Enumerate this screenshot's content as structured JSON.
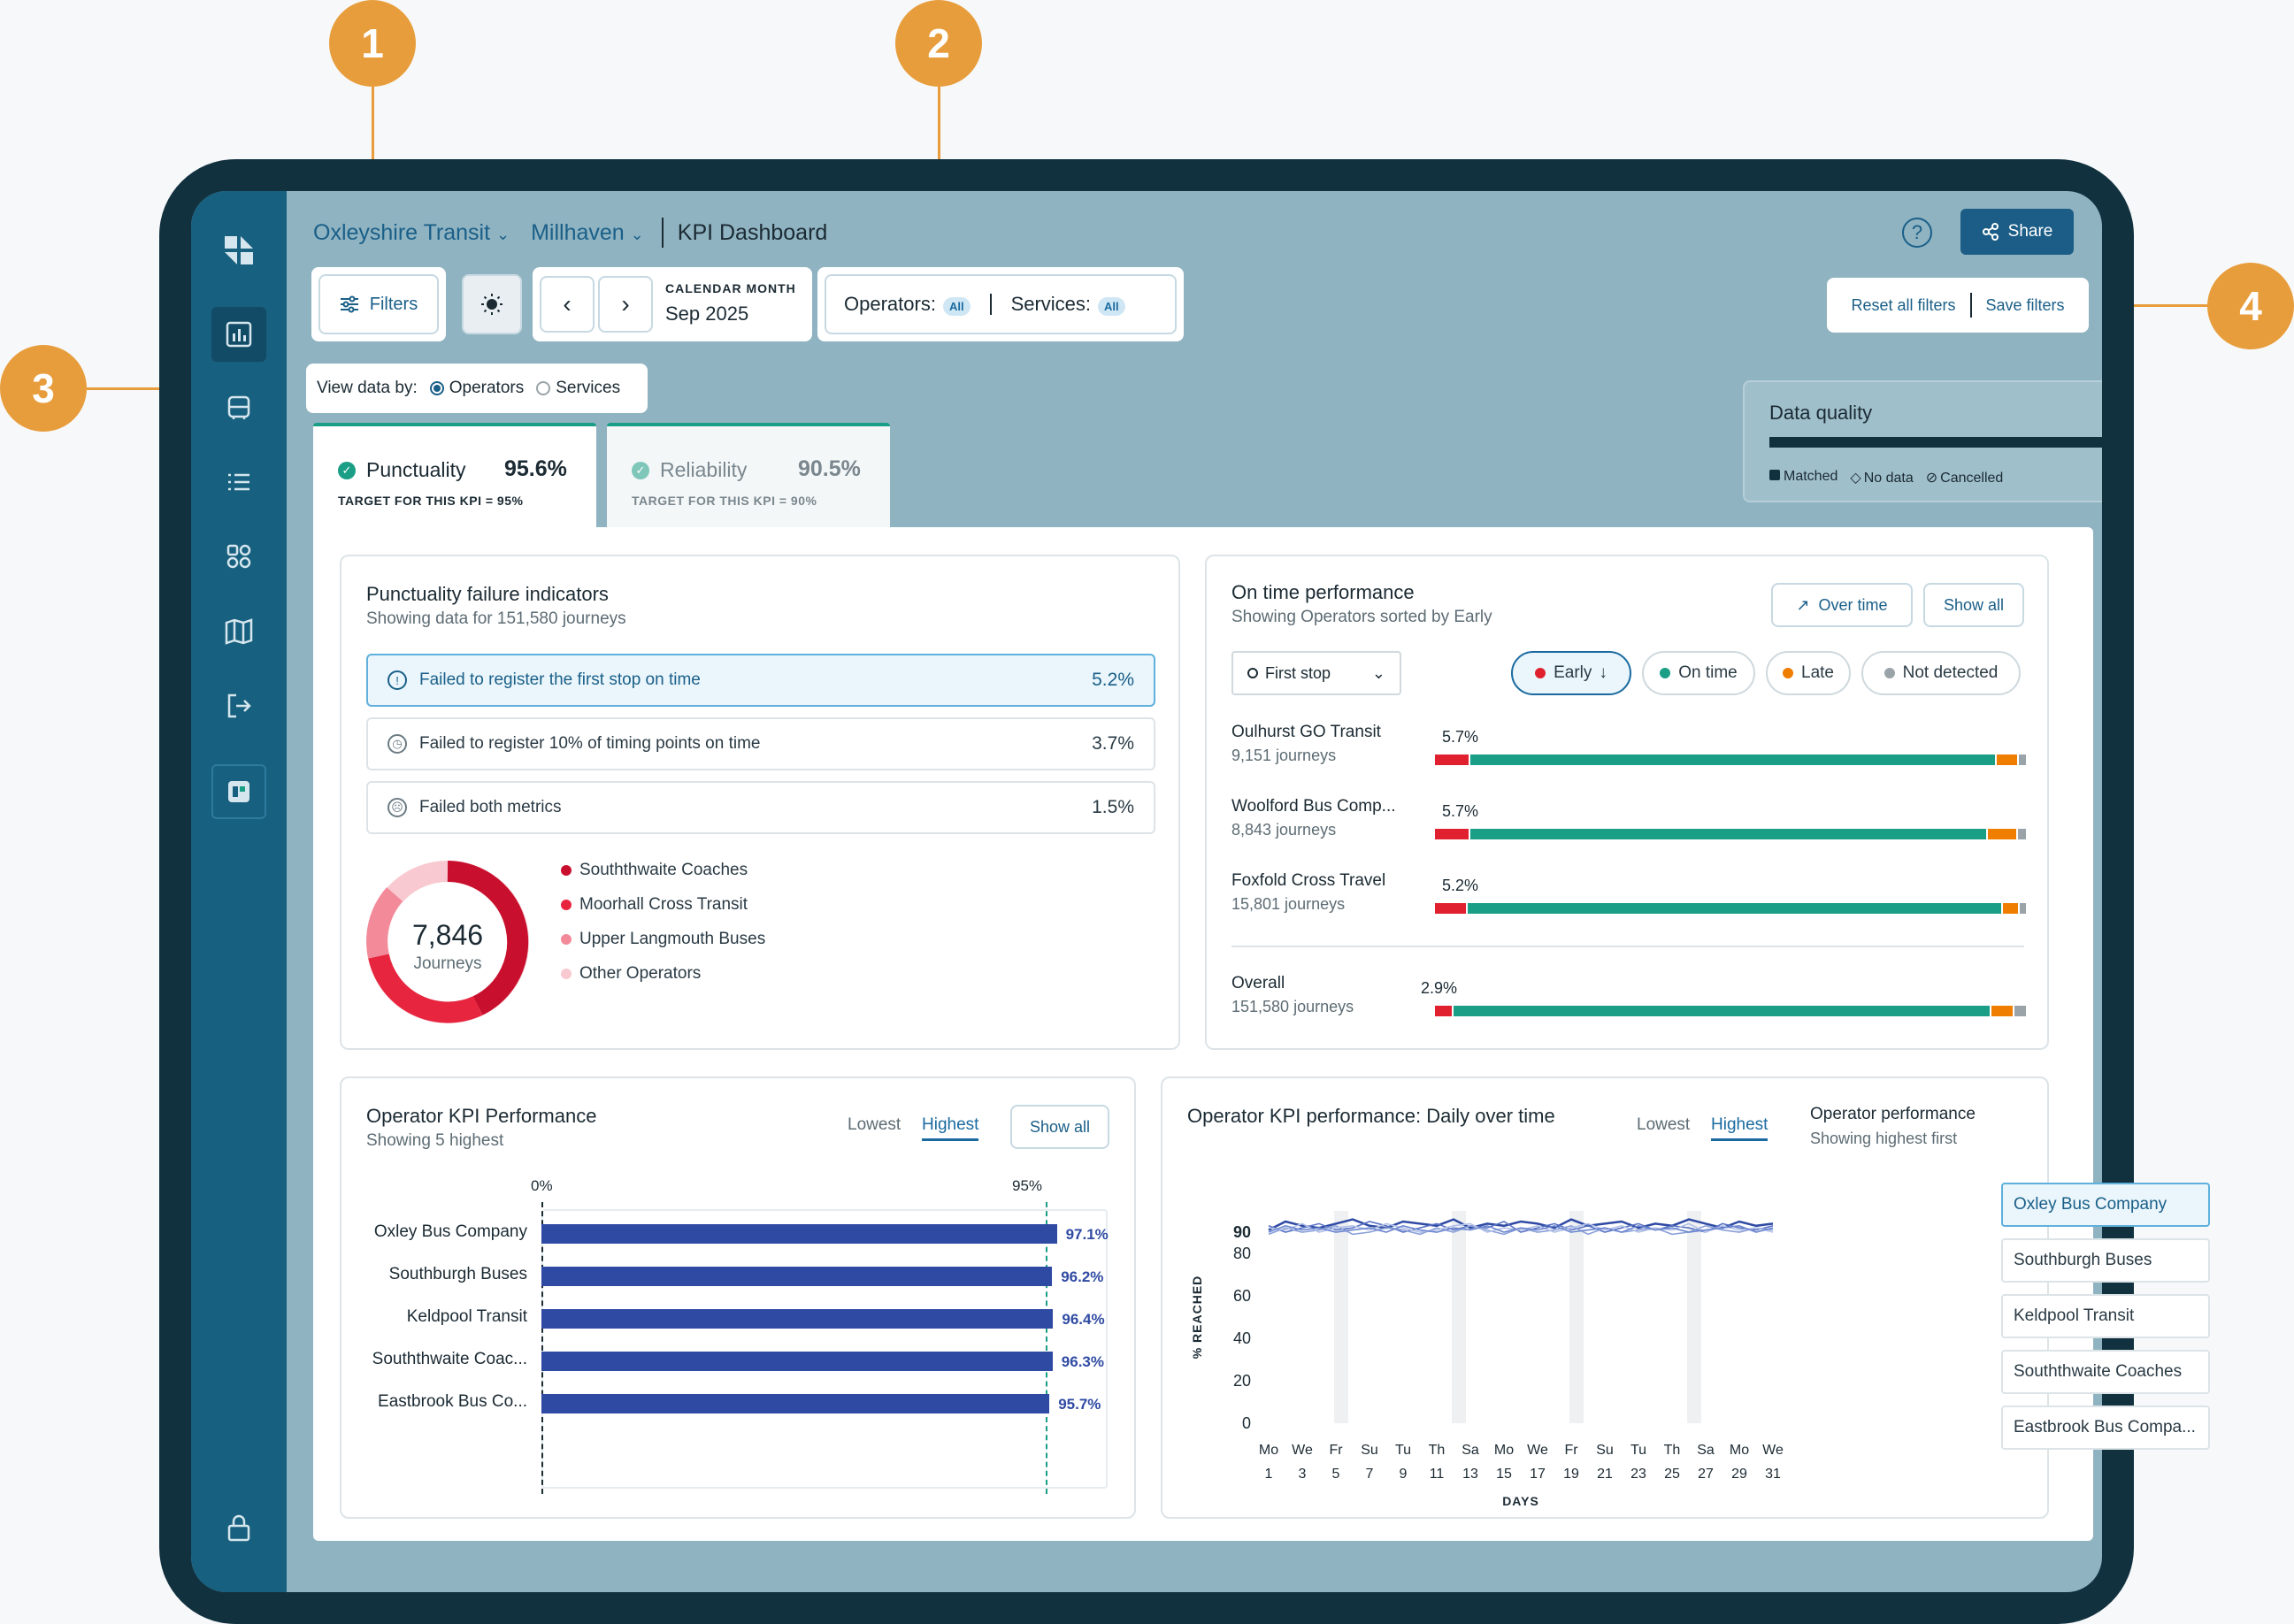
{
  "callouts": [
    "1",
    "2",
    "3",
    "4"
  ],
  "header": {
    "org": "Oxleyshire Transit",
    "area": "Millhaven",
    "page": "KPI Dashboard",
    "share": "Share"
  },
  "toolbar": {
    "filters": "Filters",
    "period_label": "CALENDAR MONTH",
    "period_value": "Sep 2025",
    "operators_label": "Operators:",
    "operators_value": "All",
    "services_label": "Services:",
    "services_value": "All",
    "reset": "Reset all filters",
    "save": "Save filters"
  },
  "view_by": {
    "label": "View data by:",
    "options": [
      "Operators",
      "Services"
    ],
    "selected": "Operators"
  },
  "kpi_tabs": [
    {
      "name": "Punctuality",
      "value": "95.6%",
      "target": "TARGET FOR THIS KPI = 95%"
    },
    {
      "name": "Reliability",
      "value": "90.5%",
      "target": "TARGET FOR THIS KPI = 90%"
    }
  ],
  "data_quality": {
    "title": "Data quality",
    "matched_fraction": 0.92,
    "legend": [
      "Matched",
      "No data",
      "Cancelled"
    ]
  },
  "failure": {
    "title": "Punctuality failure indicators",
    "subtitle": "Showing data for 151,580 journeys",
    "items": [
      {
        "label": "Failed to register the first stop on time",
        "value": "5.2%",
        "icon": "alert-icon"
      },
      {
        "label": "Failed to register 10% of timing points on time",
        "value": "3.7%",
        "icon": "clock-icon"
      },
      {
        "label": "Failed both metrics",
        "value": "1.5%",
        "icon": "sad-face-icon"
      }
    ],
    "donut_value": "7,846",
    "donut_label": "Journeys",
    "legend": [
      {
        "name": "Souththwaite Coaches",
        "color": "#c8102e"
      },
      {
        "name": "Moorhall Cross Transit",
        "color": "#e8253f"
      },
      {
        "name": "Upper Langmouth Buses",
        "color": "#f28a99"
      },
      {
        "name": "Other Operators",
        "color": "#f8c9d0"
      }
    ]
  },
  "ontime": {
    "title": "On time performance",
    "subtitle": "Showing Operators sorted by Early",
    "over_time": "Over time",
    "show_all": "Show all",
    "stop_select": "First stop",
    "chips": [
      {
        "label": "Early",
        "color": "#e0202e"
      },
      {
        "label": "On time",
        "color": "#1a9e86"
      },
      {
        "label": "Late",
        "color": "#ef7d00"
      },
      {
        "label": "Not detected",
        "color": "#9aa3a8"
      }
    ],
    "rows": [
      {
        "name": "Oulhurst GO Transit",
        "journeys": "9,151 journeys",
        "early_label": "5.7%",
        "early": 5.7,
        "ontime": 88.3,
        "late": 3.4,
        "nd": 1.2
      },
      {
        "name": "Woolford Bus Comp...",
        "journeys": "8,843 journeys",
        "early_label": "5.7%",
        "early": 5.7,
        "ontime": 86.6,
        "late": 4.8,
        "nd": 1.3
      },
      {
        "name": "Foxfold Cross Travel",
        "journeys": "15,801 journeys",
        "early_label": "5.2%",
        "early": 5.2,
        "ontime": 89.5,
        "late": 2.4,
        "nd": 1.1
      }
    ],
    "overall": {
      "name": "Overall",
      "journeys": "151,580 journeys",
      "early_label": "2.9%",
      "early": 2.9,
      "ontime": 90.5,
      "late": 3.6,
      "nd": 2.0
    }
  },
  "opkpi": {
    "title": "Operator KPI Performance",
    "subtitle": "Showing 5 highest",
    "tab_low": "Lowest",
    "tab_high": "Highest",
    "show_all": "Show all",
    "axis_start": "0%",
    "axis_target": "95%",
    "chart_data": {
      "type": "bar",
      "categories": [
        "Oxley Bus Company",
        "Southburgh Buses",
        "Keldpool Transit",
        "Souththwaite Coac...",
        "Eastbrook Bus Co..."
      ],
      "values": [
        97.1,
        96.2,
        96.4,
        96.3,
        95.7
      ],
      "labels": [
        "97.1%",
        "96.2%",
        "96.4%",
        "96.3%",
        "95.7%"
      ],
      "xlim": [
        0,
        100
      ],
      "target": 95
    }
  },
  "daily": {
    "title": "Operator KPI performance: Daily over time",
    "tab_low": "Lowest",
    "tab_high": "Highest",
    "ylabel": "% REACHED",
    "xlabel": "DAYS",
    "yticks": [
      "90",
      "80",
      "60",
      "40",
      "20",
      "0"
    ],
    "day_names": [
      "Mo",
      "We",
      "Fr",
      "Su",
      "Tu",
      "Th",
      "Sa",
      "Mo",
      "We",
      "Fr",
      "Su",
      "Tu",
      "Th",
      "Sa",
      "Mo",
      "We"
    ],
    "day_nums": [
      "1",
      "3",
      "5",
      "7",
      "9",
      "11",
      "13",
      "15",
      "17",
      "19",
      "21",
      "23",
      "25",
      "27",
      "29",
      "31"
    ],
    "side_title": "Operator performance",
    "side_sub": "Showing highest first",
    "operators": [
      "Oxley Bus Company",
      "Southburgh Buses",
      "Keldpool Transit",
      "Souththwaite Coaches",
      "Eastbrook Bus Compa..."
    ],
    "chart_data": {
      "type": "line",
      "ylim": [
        0,
        100
      ],
      "series": [
        {
          "values": [
            91,
            95,
            93,
            92,
            94,
            96,
            93,
            92,
            95,
            94,
            93,
            96,
            92,
            94,
            93,
            95,
            94,
            92,
            96,
            93,
            94,
            95,
            92,
            94,
            93,
            96,
            94,
            92,
            95,
            93,
            94
          ]
        },
        {
          "values": [
            93,
            90,
            92,
            94,
            91,
            92,
            95,
            93,
            90,
            92,
            94,
            91,
            93,
            92,
            95,
            90,
            92,
            94,
            91,
            93,
            90,
            92,
            94,
            91,
            93,
            92,
            90,
            94,
            92,
            91,
            93
          ]
        },
        {
          "values": [
            89,
            92,
            90,
            91,
            93,
            89,
            90,
            92,
            91,
            89,
            92,
            90,
            93,
            91,
            89,
            92,
            90,
            91,
            93,
            89,
            92,
            90,
            91,
            92,
            89,
            90,
            93,
            91,
            90,
            92,
            91
          ]
        },
        {
          "values": [
            92,
            91,
            94,
            90,
            92,
            93,
            91,
            94,
            92,
            90,
            91,
            93,
            94,
            90,
            92,
            91,
            93,
            90,
            92,
            94,
            91,
            93,
            90,
            92,
            91,
            94,
            90,
            93,
            91,
            92,
            90
          ]
        },
        {
          "values": [
            90,
            93,
            91,
            92,
            90,
            91,
            92,
            90,
            93,
            91,
            90,
            92,
            91,
            93,
            90,
            92,
            91,
            93,
            90,
            91,
            92,
            90,
            93,
            91,
            92,
            90,
            91,
            92,
            93,
            90,
            92
          ]
        }
      ]
    }
  }
}
